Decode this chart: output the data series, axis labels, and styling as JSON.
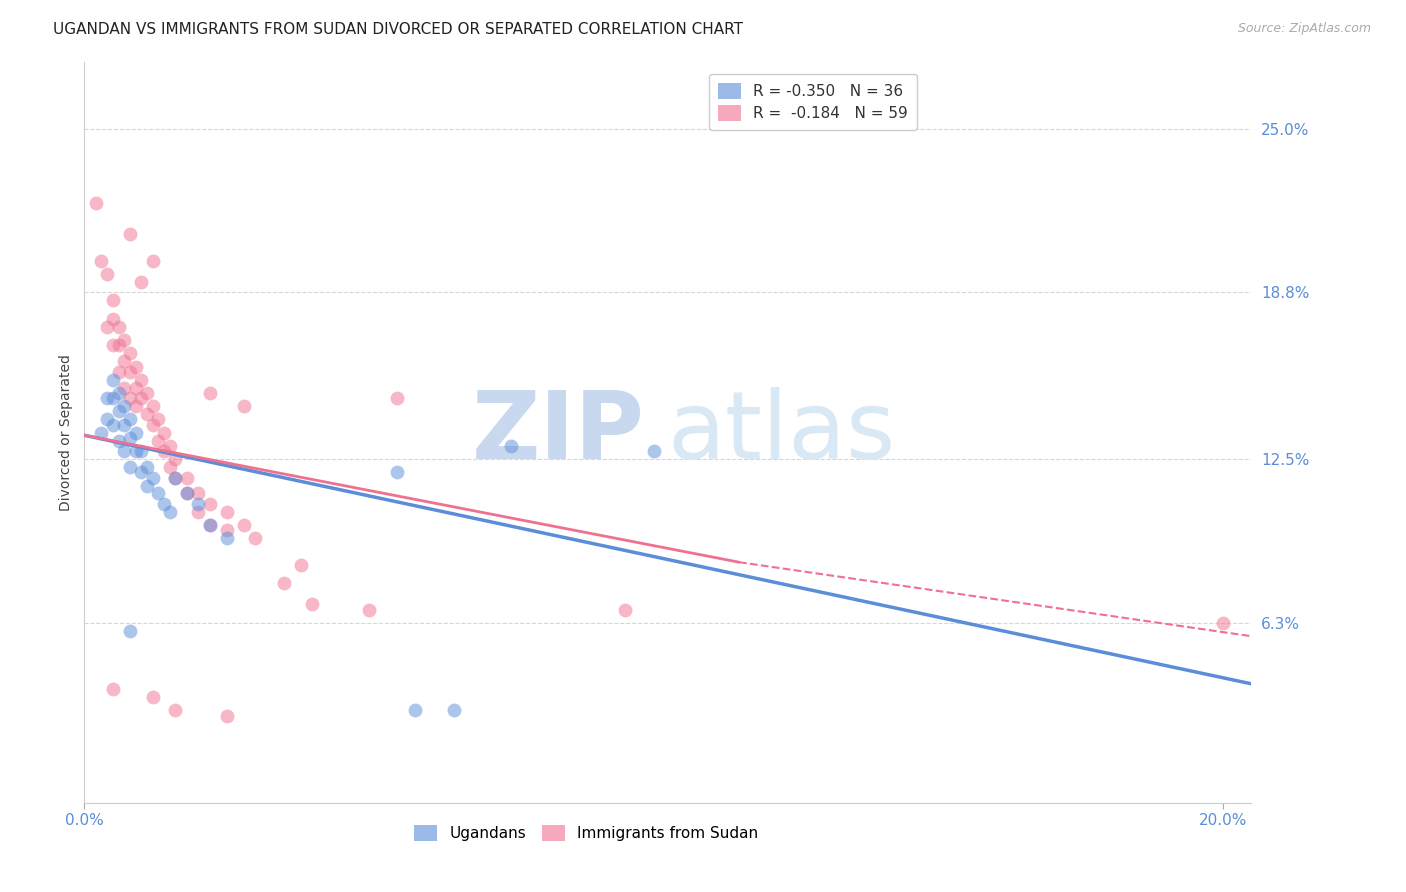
{
  "title": "UGANDAN VS IMMIGRANTS FROM SUDAN DIVORCED OR SEPARATED CORRELATION CHART",
  "source": "Source: ZipAtlas.com",
  "xlabel_ticks": [
    "0.0%",
    "20.0%"
  ],
  "ylabel_ticks": [
    "6.3%",
    "12.5%",
    "18.8%",
    "25.0%"
  ],
  "ylabel_label": "Divorced or Separated",
  "xlim": [
    0.0,
    0.205
  ],
  "ylim": [
    -0.005,
    0.275
  ],
  "ytick_vals": [
    0.063,
    0.125,
    0.188,
    0.25
  ],
  "xtick_vals": [
    0.0,
    0.2
  ],
  "legend_line1": "R = -0.350   N = 36",
  "legend_line2": "R =  -0.184   N = 59",
  "ugandan_scatter": [
    [
      0.003,
      0.135
    ],
    [
      0.004,
      0.148
    ],
    [
      0.004,
      0.14
    ],
    [
      0.005,
      0.155
    ],
    [
      0.005,
      0.148
    ],
    [
      0.005,
      0.138
    ],
    [
      0.006,
      0.15
    ],
    [
      0.006,
      0.143
    ],
    [
      0.006,
      0.132
    ],
    [
      0.007,
      0.145
    ],
    [
      0.007,
      0.138
    ],
    [
      0.007,
      0.128
    ],
    [
      0.008,
      0.14
    ],
    [
      0.008,
      0.133
    ],
    [
      0.008,
      0.122
    ],
    [
      0.009,
      0.135
    ],
    [
      0.009,
      0.128
    ],
    [
      0.01,
      0.128
    ],
    [
      0.01,
      0.12
    ],
    [
      0.011,
      0.122
    ],
    [
      0.011,
      0.115
    ],
    [
      0.012,
      0.118
    ],
    [
      0.013,
      0.112
    ],
    [
      0.014,
      0.108
    ],
    [
      0.015,
      0.105
    ],
    [
      0.016,
      0.118
    ],
    [
      0.018,
      0.112
    ],
    [
      0.02,
      0.108
    ],
    [
      0.022,
      0.1
    ],
    [
      0.025,
      0.095
    ],
    [
      0.008,
      0.06
    ],
    [
      0.075,
      0.13
    ],
    [
      0.1,
      0.128
    ],
    [
      0.055,
      0.12
    ],
    [
      0.058,
      0.03
    ],
    [
      0.065,
      0.03
    ]
  ],
  "sudan_scatter": [
    [
      0.002,
      0.222
    ],
    [
      0.003,
      0.2
    ],
    [
      0.004,
      0.195
    ],
    [
      0.004,
      0.175
    ],
    [
      0.005,
      0.185
    ],
    [
      0.005,
      0.178
    ],
    [
      0.005,
      0.168
    ],
    [
      0.006,
      0.175
    ],
    [
      0.006,
      0.168
    ],
    [
      0.006,
      0.158
    ],
    [
      0.007,
      0.17
    ],
    [
      0.007,
      0.162
    ],
    [
      0.007,
      0.152
    ],
    [
      0.008,
      0.165
    ],
    [
      0.008,
      0.158
    ],
    [
      0.008,
      0.148
    ],
    [
      0.009,
      0.16
    ],
    [
      0.009,
      0.152
    ],
    [
      0.009,
      0.145
    ],
    [
      0.01,
      0.155
    ],
    [
      0.01,
      0.148
    ],
    [
      0.011,
      0.15
    ],
    [
      0.011,
      0.142
    ],
    [
      0.012,
      0.145
    ],
    [
      0.012,
      0.138
    ],
    [
      0.013,
      0.14
    ],
    [
      0.013,
      0.132
    ],
    [
      0.014,
      0.135
    ],
    [
      0.014,
      0.128
    ],
    [
      0.015,
      0.13
    ],
    [
      0.015,
      0.122
    ],
    [
      0.016,
      0.125
    ],
    [
      0.016,
      0.118
    ],
    [
      0.018,
      0.118
    ],
    [
      0.018,
      0.112
    ],
    [
      0.02,
      0.112
    ],
    [
      0.02,
      0.105
    ],
    [
      0.022,
      0.108
    ],
    [
      0.022,
      0.1
    ],
    [
      0.025,
      0.105
    ],
    [
      0.025,
      0.098
    ],
    [
      0.028,
      0.1
    ],
    [
      0.03,
      0.095
    ],
    [
      0.035,
      0.078
    ],
    [
      0.04,
      0.07
    ],
    [
      0.012,
      0.035
    ],
    [
      0.025,
      0.028
    ],
    [
      0.005,
      0.038
    ],
    [
      0.05,
      0.068
    ],
    [
      0.095,
      0.068
    ],
    [
      0.016,
      0.03
    ],
    [
      0.055,
      0.148
    ],
    [
      0.038,
      0.085
    ],
    [
      0.028,
      0.145
    ],
    [
      0.022,
      0.15
    ],
    [
      0.008,
      0.21
    ],
    [
      0.012,
      0.2
    ],
    [
      0.01,
      0.192
    ],
    [
      0.2,
      0.063
    ]
  ],
  "ugandan_line_solid": {
    "x": [
      0.0,
      0.205
    ],
    "y": [
      0.134,
      0.04
    ]
  },
  "sudan_line_solid": {
    "x": [
      0.0,
      0.115
    ],
    "y": [
      0.134,
      0.086
    ]
  },
  "sudan_line_dashed": {
    "x": [
      0.115,
      0.205
    ],
    "y": [
      0.086,
      0.058
    ]
  },
  "ugandan_color": "#5b8dd9",
  "sudan_color": "#f07090",
  "scatter_alpha": 0.5,
  "scatter_size": 100,
  "background_color": "#ffffff",
  "grid_color": "#cccccc",
  "title_fontsize": 11,
  "axis_label_fontsize": 10,
  "tick_fontsize": 11,
  "tick_color": "#5b8dd9",
  "watermark_zip": "ZIP",
  "watermark_atlas": "atlas",
  "watermark_color_zip": "#c8d8ee",
  "watermark_color_atlas": "#d8e8f5"
}
